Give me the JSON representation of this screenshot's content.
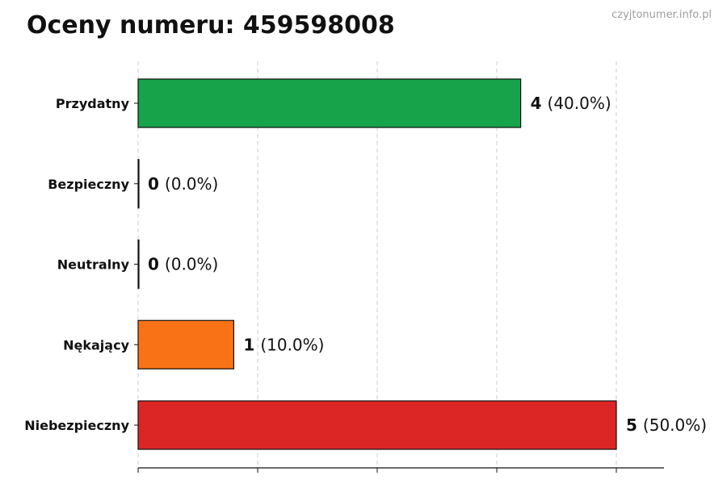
{
  "header": {
    "title": "Oceny numeru: 459598008",
    "source": "czyjtonumer.info.pl"
  },
  "chart_data": {
    "type": "bar",
    "orientation": "horizontal",
    "title": "Oceny numeru: 459598008",
    "categories": [
      "Przydatny",
      "Bezpieczny",
      "Neutralny",
      "Nękający",
      "Niebezpieczny"
    ],
    "values": [
      4,
      0,
      0,
      1,
      5
    ],
    "percent_labels": [
      "(40.0%)",
      "(0.0%)",
      "(0.0%)",
      "(10.0%)",
      "(50.0%)"
    ],
    "colors": [
      "#16a34a",
      "#16a34a",
      "#9ca3af",
      "#f97316",
      "#dc2626"
    ],
    "xlim": [
      0,
      5.5
    ],
    "xticks": [
      0,
      1.25,
      2.5,
      3.75,
      5
    ],
    "grid": true,
    "xlabel": "",
    "ylabel": ""
  }
}
